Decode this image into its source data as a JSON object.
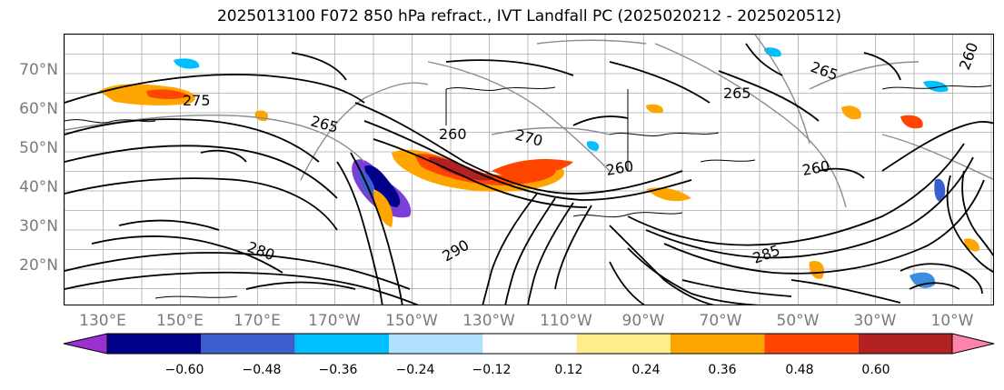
{
  "title": "2025013100 F072 850 hPa refract., IVT Landfall PC (2025020212 - 2025020512)",
  "latitude_labels": [
    "70°N",
    "60°N",
    "50°N",
    "40°N",
    "30°N",
    "20°N"
  ],
  "longitude_labels": [
    "130°E",
    "150°E",
    "170°E",
    "170°W",
    "150°W",
    "130°W",
    "110°W",
    "90°W",
    "70°W",
    "50°W",
    "30°W",
    "10°W"
  ],
  "contour_labels": [
    "265",
    "260",
    "265",
    "260",
    "270",
    "260",
    "275",
    "280",
    "285",
    "265",
    "260",
    "290"
  ],
  "colorbar": {
    "ticks": [
      "−0.60",
      "−0.48",
      "−0.36",
      "−0.24",
      "−0.12",
      "0.12",
      "0.24",
      "0.36",
      "0.48",
      "0.60"
    ],
    "colors": [
      "#9b30d0",
      "#00008b",
      "#3a5fcd",
      "#00bfff",
      "#b0e2ff",
      "#ffffff",
      "#ffec8b",
      "#ffa500",
      "#ff4500",
      "#b22222",
      "#ff82ab"
    ]
  },
  "colors": {
    "grid": "#aaaaaa",
    "contour_black": "#000000",
    "contour_gray": "#8c8c8c",
    "label_gray": "#7a7a7a"
  }
}
